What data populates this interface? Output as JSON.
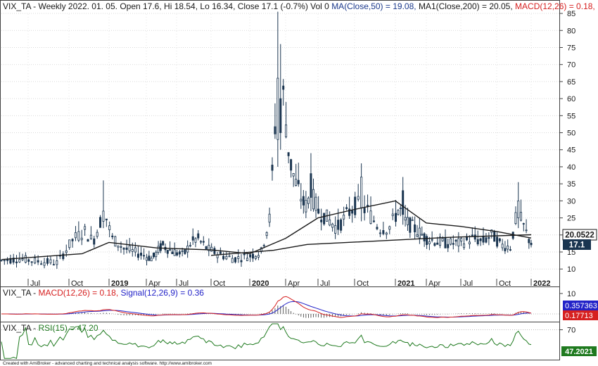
{
  "header": {
    "prefix": "VIX_TA - Weekly 2022. 01. 05. Open 17.6, Hi 18.54, Lo 16.34, Close 17.1 (-0.7%) Vol 0",
    "ma": "MA(Close,50) = 19.08,",
    "ma1": "MA1(Close,200) = 20.05,",
    "macd": "MACD(12,26) = 0.18,"
  },
  "macd_header": {
    "prefix": "VIX_TA - ",
    "macd": "MACD(12,26) = 0.18,",
    "signal": "Signal(12,26,9) = 0.36"
  },
  "rsi_header": {
    "prefix": "VIX_TA - ",
    "rsi": "RSI(15) = 47.20"
  },
  "footer": "Created with AmiBroker - advanced charting and technical analysis software. http://www.amibroker.com",
  "colors": {
    "price": "#1a3550",
    "ma": "#1a1a1a",
    "macd": "#d62020",
    "signal": "#2323c8",
    "rsi": "#1f7a1f",
    "header_blue": "#1c3a8c"
  },
  "chart_data": [
    {
      "type": "candlestick",
      "title": "VIX_TA - Weekly",
      "x_tick_labels": [
        "Jul",
        "Oct",
        "2019",
        "Apr",
        "Jul",
        "Oct",
        "2020",
        "Apr",
        "Jul",
        "Oct",
        "2021",
        "Apr",
        "Jul",
        "Oct",
        "2022"
      ],
      "y_ticks": [
        10,
        15,
        20,
        25,
        30,
        35,
        40,
        45,
        50,
        55,
        60,
        65,
        70,
        75,
        80,
        85
      ],
      "ylim": [
        5.5,
        89
      ],
      "price_labels": {
        "ma200": "20.0522",
        "close": "17.1"
      },
      "key_values": {
        "close": 17.1,
        "ma50": 19.08,
        "ma200": 20.05
      },
      "approx_series": {
        "weekly_high_low_peaks": [
          {
            "date": "2018-10",
            "high": 28
          },
          {
            "date": "2018-12",
            "high": 36
          },
          {
            "date": "2020-03",
            "high": 85.5
          },
          {
            "date": "2020-03",
            "high": 76
          },
          {
            "date": "2020-06",
            "high": 44
          },
          {
            "date": "2020-10",
            "high": 41
          },
          {
            "date": "2021-01",
            "high": 37
          },
          {
            "date": "2021-11",
            "high": 35.5
          }
        ],
        "ma50_path": [
          {
            "date": "2018-05",
            "value": 12.8
          },
          {
            "date": "2018-11",
            "value": 14.5
          },
          {
            "date": "2019-01",
            "value": 17.8
          },
          {
            "date": "2019-05",
            "value": 16.2
          },
          {
            "date": "2019-10",
            "value": 15.6
          },
          {
            "date": "2020-01",
            "value": 14.5
          },
          {
            "date": "2020-04",
            "value": 19
          },
          {
            "date": "2020-07",
            "value": 25
          },
          {
            "date": "2020-10",
            "value": 27.5
          },
          {
            "date": "2021-01",
            "value": 30
          },
          {
            "date": "2021-04",
            "value": 23.5
          },
          {
            "date": "2021-07",
            "value": 22.5
          },
          {
            "date": "2021-10",
            "value": 21
          },
          {
            "date": "2022-01",
            "value": 19.08
          }
        ],
        "ma200_path": [
          {
            "date": "2019-10",
            "value": 14
          },
          {
            "date": "2020-03",
            "value": 15.5
          },
          {
            "date": "2020-06",
            "value": 17.2
          },
          {
            "date": "2021-01",
            "value": 18.5
          },
          {
            "date": "2021-06",
            "value": 19.3
          },
          {
            "date": "2022-01",
            "value": 20.05
          }
        ]
      }
    },
    {
      "type": "line",
      "title": "MACD",
      "y_ticks": [
        10
      ],
      "series": [
        {
          "name": "MACD(12,26)",
          "last": 0.18
        },
        {
          "name": "Signal(12,26,9)",
          "last": 0.36
        }
      ],
      "price_labels": {
        "signal": "0.357363",
        "macd": "0.17713"
      }
    },
    {
      "type": "line",
      "title": "RSI",
      "y_ticks": [
        70
      ],
      "series": [
        {
          "name": "RSI(15)",
          "last": 47.2
        }
      ],
      "price_labels": {
        "rsi": "47.2021"
      }
    }
  ]
}
